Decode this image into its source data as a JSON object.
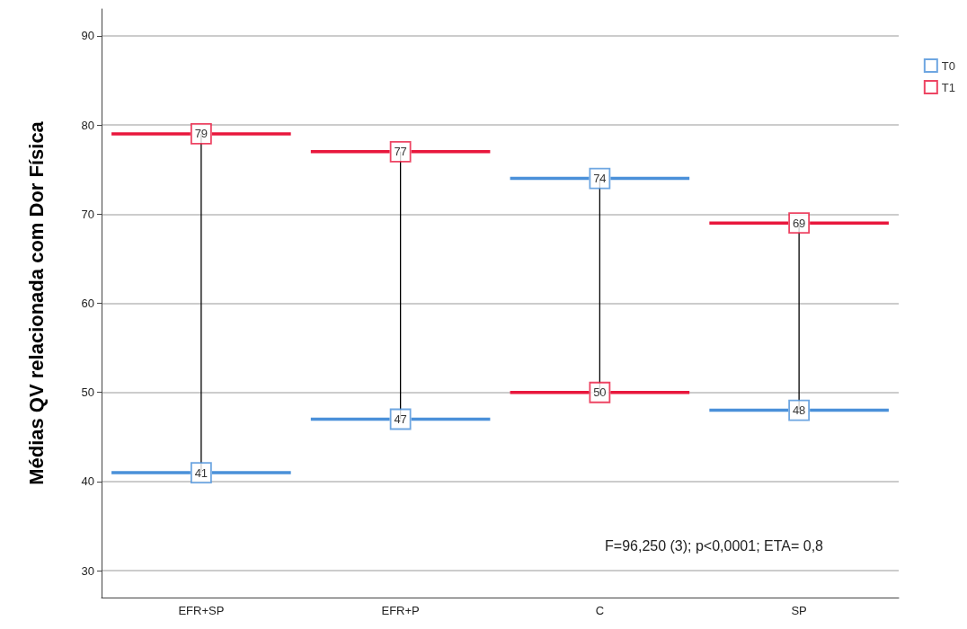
{
  "chart_data": {
    "type": "scatter",
    "ylabel": "Médias QV relacionada com Dor Física",
    "categories": [
      "EFR+SP",
      "EFR+P",
      "C",
      "SP"
    ],
    "series": [
      {
        "name": "T0",
        "color": "#4a90d9",
        "values": [
          41,
          47,
          74,
          48
        ]
      },
      {
        "name": "T1",
        "color": "#e8173c",
        "values": [
          79,
          77,
          50,
          69
        ]
      }
    ],
    "marker": "square",
    "ylim": [
      27,
      93
    ],
    "yticks": [
      30,
      40,
      50,
      60,
      70,
      80,
      90
    ],
    "grid": "y",
    "legend": "top right",
    "data_labels": true,
    "annotations": [
      "F=96,250 (3); p<0,0001; ETA= 0,8"
    ]
  }
}
